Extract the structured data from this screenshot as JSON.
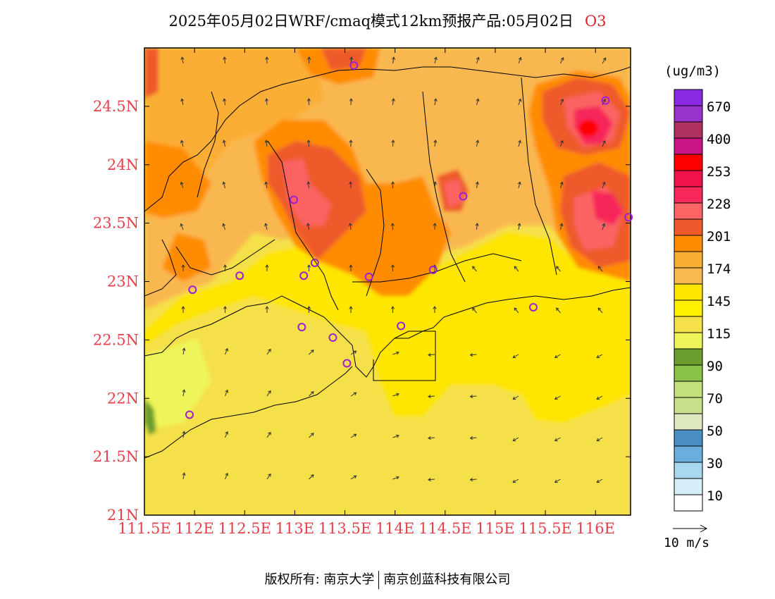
{
  "title": {
    "text": "2025年05月02日WRF/cmaq模式12km预报产品:05月02日",
    "species": "O3"
  },
  "legend": {
    "unit": "(ug/m3)",
    "bands": [
      {
        "color": "#8a2be2",
        "label": "670"
      },
      {
        "color": "#9932cc",
        "label": ""
      },
      {
        "color": "#b03060",
        "label": "400"
      },
      {
        "color": "#c71585",
        "label": ""
      },
      {
        "color": "#ff0000",
        "label": "253"
      },
      {
        "color": "#f0124a",
        "label": ""
      },
      {
        "color": "#f7285a",
        "label": "228"
      },
      {
        "color": "#fb6464",
        "label": ""
      },
      {
        "color": "#ee5a2c",
        "label": "201"
      },
      {
        "color": "#ff8c00",
        "label": ""
      },
      {
        "color": "#fbae35",
        "label": "174"
      },
      {
        "color": "#f9b850",
        "label": ""
      },
      {
        "color": "#ffe600",
        "label": "145"
      },
      {
        "color": "#fff000",
        "label": ""
      },
      {
        "color": "#f5e04a",
        "label": "115"
      },
      {
        "color": "#eef55a",
        "label": ""
      },
      {
        "color": "#6b9e2e",
        "label": "90"
      },
      {
        "color": "#8bc34a",
        "label": ""
      },
      {
        "color": "#c4e07a",
        "label": "70"
      },
      {
        "color": "#c8e08c",
        "label": ""
      },
      {
        "color": "#dde8c0",
        "label": "50"
      },
      {
        "color": "#4a8fc4",
        "label": ""
      },
      {
        "color": "#6aaede",
        "label": "30"
      },
      {
        "color": "#a8d8f0",
        "label": ""
      },
      {
        "color": "#d6eef8",
        "label": "10"
      },
      {
        "color": "#ffffff",
        "label": ""
      }
    ]
  },
  "axes": {
    "x_ticks": [
      "111.5E",
      "112E",
      "112.5E",
      "113E",
      "113.5E",
      "114E",
      "114.5E",
      "115E",
      "115.5E",
      "116E"
    ],
    "y_ticks": [
      "21N",
      "21.5N",
      "22N",
      "22.5N",
      "23N",
      "23.5N",
      "24N",
      "24.5N"
    ],
    "x_range": [
      111.5,
      116.35
    ],
    "y_range": [
      21.0,
      25.0
    ]
  },
  "wind_vector_label": "10 m/s",
  "stations": [
    {
      "lon": 113.59,
      "lat": 24.85
    },
    {
      "lon": 116.1,
      "lat": 24.55
    },
    {
      "lon": 112.99,
      "lat": 23.7
    },
    {
      "lon": 114.68,
      "lat": 23.73
    },
    {
      "lon": 116.33,
      "lat": 23.55
    },
    {
      "lon": 112.45,
      "lat": 23.05
    },
    {
      "lon": 113.09,
      "lat": 23.05
    },
    {
      "lon": 113.2,
      "lat": 23.16
    },
    {
      "lon": 113.74,
      "lat": 23.04
    },
    {
      "lon": 114.38,
      "lat": 23.1
    },
    {
      "lon": 111.98,
      "lat": 22.93
    },
    {
      "lon": 115.38,
      "lat": 22.78
    },
    {
      "lon": 113.07,
      "lat": 22.61
    },
    {
      "lon": 113.38,
      "lat": 22.52
    },
    {
      "lon": 114.06,
      "lat": 22.62
    },
    {
      "lon": 113.52,
      "lat": 22.3
    },
    {
      "lon": 111.95,
      "lat": 21.86
    }
  ],
  "footer": {
    "copyright": "版权所有: 南京大学",
    "company": "南京创蓝科技有限公司"
  },
  "colors": {
    "tick_label": "#e8404a",
    "accent": "#e0202a",
    "station": "#9b1fd6"
  }
}
